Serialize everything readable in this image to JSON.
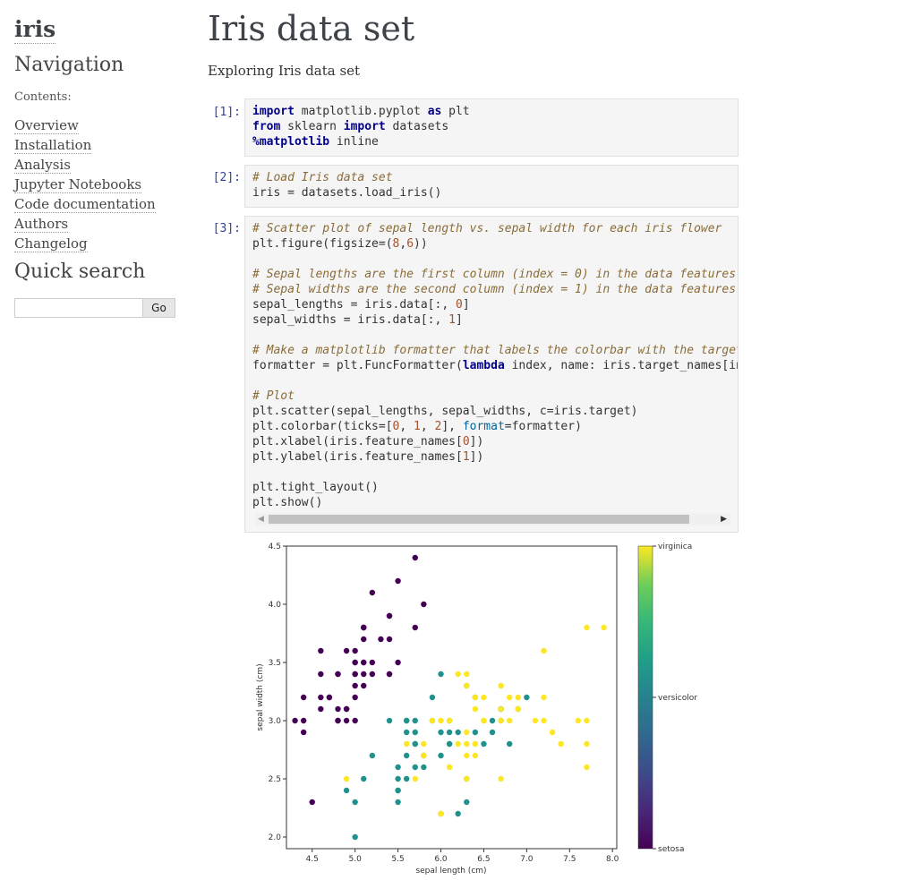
{
  "sidebar": {
    "brand": "iris",
    "nav_title": "Navigation",
    "contents_label": "Contents:",
    "items": [
      {
        "label": "Overview"
      },
      {
        "label": "Installation"
      },
      {
        "label": "Analysis"
      },
      {
        "label": "Jupyter Notebooks"
      },
      {
        "label": "Code documentation"
      },
      {
        "label": "Authors"
      },
      {
        "label": "Changelog"
      }
    ],
    "search_title": "Quick search",
    "search_value": "",
    "search_button": "Go"
  },
  "main": {
    "title": "Iris data set",
    "subtitle": "Exploring Iris data set",
    "cells": [
      {
        "prompt": "[1]:"
      },
      {
        "prompt": "[2]:"
      },
      {
        "prompt": "[3]:"
      }
    ]
  },
  "chart_data": {
    "type": "scatter",
    "xlabel": "sepal length (cm)",
    "ylabel": "sepal width (cm)",
    "xlim": [
      4.2,
      8.05
    ],
    "ylim": [
      1.9,
      4.5
    ],
    "xticks": [
      "4.5",
      "5.0",
      "5.5",
      "6.0",
      "6.5",
      "7.0",
      "7.5",
      "8.0"
    ],
    "yticks": [
      "2.0",
      "2.5",
      "3.0",
      "3.5",
      "4.0",
      "4.5"
    ],
    "colorbar_labels": [
      "virginica",
      "versicolor",
      "setosa"
    ],
    "colors": {
      "setosa": "#440154",
      "versicolor": "#21918c",
      "virginica": "#fde725"
    },
    "series": [
      {
        "name": "setosa",
        "points": [
          [
            5.1,
            3.5
          ],
          [
            4.9,
            3.0
          ],
          [
            4.7,
            3.2
          ],
          [
            4.6,
            3.1
          ],
          [
            5.0,
            3.6
          ],
          [
            5.4,
            3.9
          ],
          [
            4.6,
            3.4
          ],
          [
            5.0,
            3.4
          ],
          [
            4.4,
            2.9
          ],
          [
            4.9,
            3.1
          ],
          [
            5.4,
            3.7
          ],
          [
            4.8,
            3.4
          ],
          [
            4.8,
            3.0
          ],
          [
            4.3,
            3.0
          ],
          [
            5.8,
            4.0
          ],
          [
            5.7,
            4.4
          ],
          [
            5.4,
            3.9
          ],
          [
            5.1,
            3.5
          ],
          [
            5.7,
            3.8
          ],
          [
            5.1,
            3.8
          ],
          [
            5.4,
            3.4
          ],
          [
            5.1,
            3.7
          ],
          [
            4.6,
            3.6
          ],
          [
            5.1,
            3.3
          ],
          [
            4.8,
            3.4
          ],
          [
            5.0,
            3.0
          ],
          [
            5.0,
            3.4
          ],
          [
            5.2,
            3.5
          ],
          [
            5.2,
            3.4
          ],
          [
            4.7,
            3.2
          ],
          [
            4.8,
            3.1
          ],
          [
            5.4,
            3.4
          ],
          [
            5.2,
            4.1
          ],
          [
            5.5,
            4.2
          ],
          [
            4.9,
            3.1
          ],
          [
            5.0,
            3.2
          ],
          [
            5.5,
            3.5
          ],
          [
            4.9,
            3.6
          ],
          [
            4.4,
            3.0
          ],
          [
            5.1,
            3.4
          ],
          [
            5.0,
            3.5
          ],
          [
            4.5,
            2.3
          ],
          [
            4.4,
            3.2
          ],
          [
            5.0,
            3.5
          ],
          [
            5.1,
            3.8
          ],
          [
            4.8,
            3.0
          ],
          [
            5.1,
            3.8
          ],
          [
            4.6,
            3.2
          ],
          [
            5.3,
            3.7
          ],
          [
            5.0,
            3.3
          ]
        ]
      },
      {
        "name": "versicolor",
        "points": [
          [
            7.0,
            3.2
          ],
          [
            6.4,
            3.2
          ],
          [
            6.9,
            3.1
          ],
          [
            5.5,
            2.3
          ],
          [
            6.5,
            2.8
          ],
          [
            5.7,
            2.8
          ],
          [
            6.3,
            3.3
          ],
          [
            4.9,
            2.4
          ],
          [
            6.6,
            2.9
          ],
          [
            5.2,
            2.7
          ],
          [
            5.0,
            2.0
          ],
          [
            5.9,
            3.0
          ],
          [
            6.0,
            2.2
          ],
          [
            6.1,
            2.9
          ],
          [
            5.6,
            2.9
          ],
          [
            6.7,
            3.1
          ],
          [
            5.6,
            3.0
          ],
          [
            5.8,
            2.7
          ],
          [
            6.2,
            2.2
          ],
          [
            5.6,
            2.5
          ],
          [
            5.9,
            3.2
          ],
          [
            6.1,
            2.8
          ],
          [
            6.3,
            2.5
          ],
          [
            6.1,
            2.8
          ],
          [
            6.4,
            2.9
          ],
          [
            6.6,
            3.0
          ],
          [
            6.8,
            2.8
          ],
          [
            6.7,
            3.0
          ],
          [
            6.0,
            2.9
          ],
          [
            5.7,
            2.6
          ],
          [
            5.5,
            2.4
          ],
          [
            5.5,
            2.4
          ],
          [
            5.8,
            2.7
          ],
          [
            6.0,
            2.7
          ],
          [
            5.4,
            3.0
          ],
          [
            6.0,
            3.4
          ],
          [
            6.7,
            3.1
          ],
          [
            6.3,
            2.3
          ],
          [
            5.6,
            3.0
          ],
          [
            5.5,
            2.5
          ],
          [
            5.5,
            2.6
          ],
          [
            6.1,
            3.0
          ],
          [
            5.8,
            2.6
          ],
          [
            5.0,
            2.3
          ],
          [
            5.6,
            2.7
          ],
          [
            5.7,
            3.0
          ],
          [
            5.7,
            2.9
          ],
          [
            6.2,
            2.9
          ],
          [
            5.1,
            2.5
          ],
          [
            5.7,
            2.8
          ]
        ]
      },
      {
        "name": "virginica",
        "points": [
          [
            6.3,
            3.3
          ],
          [
            5.8,
            2.7
          ],
          [
            7.1,
            3.0
          ],
          [
            6.3,
            2.9
          ],
          [
            6.5,
            3.0
          ],
          [
            7.6,
            3.0
          ],
          [
            4.9,
            2.5
          ],
          [
            7.3,
            2.9
          ],
          [
            6.7,
            2.5
          ],
          [
            7.2,
            3.6
          ],
          [
            6.5,
            3.2
          ],
          [
            6.4,
            2.7
          ],
          [
            6.8,
            3.0
          ],
          [
            5.7,
            2.5
          ],
          [
            5.8,
            2.8
          ],
          [
            6.4,
            3.2
          ],
          [
            6.5,
            3.0
          ],
          [
            7.7,
            3.8
          ],
          [
            7.7,
            2.6
          ],
          [
            6.0,
            2.2
          ],
          [
            6.9,
            3.2
          ],
          [
            5.6,
            2.8
          ],
          [
            7.7,
            2.8
          ],
          [
            6.3,
            2.7
          ],
          [
            6.7,
            3.3
          ],
          [
            7.2,
            3.2
          ],
          [
            6.2,
            2.8
          ],
          [
            6.1,
            3.0
          ],
          [
            6.4,
            2.8
          ],
          [
            7.2,
            3.0
          ],
          [
            7.4,
            2.8
          ],
          [
            7.9,
            3.8
          ],
          [
            6.4,
            2.8
          ],
          [
            6.3,
            2.8
          ],
          [
            6.1,
            2.6
          ],
          [
            7.7,
            3.0
          ],
          [
            6.3,
            3.4
          ],
          [
            6.4,
            3.1
          ],
          [
            6.0,
            3.0
          ],
          [
            6.9,
            3.1
          ],
          [
            6.7,
            3.1
          ],
          [
            6.9,
            3.1
          ],
          [
            5.8,
            2.7
          ],
          [
            6.8,
            3.2
          ],
          [
            6.7,
            3.3
          ],
          [
            6.7,
            3.0
          ],
          [
            6.3,
            2.5
          ],
          [
            6.5,
            3.0
          ],
          [
            6.2,
            3.4
          ],
          [
            5.9,
            3.0
          ]
        ]
      }
    ]
  }
}
